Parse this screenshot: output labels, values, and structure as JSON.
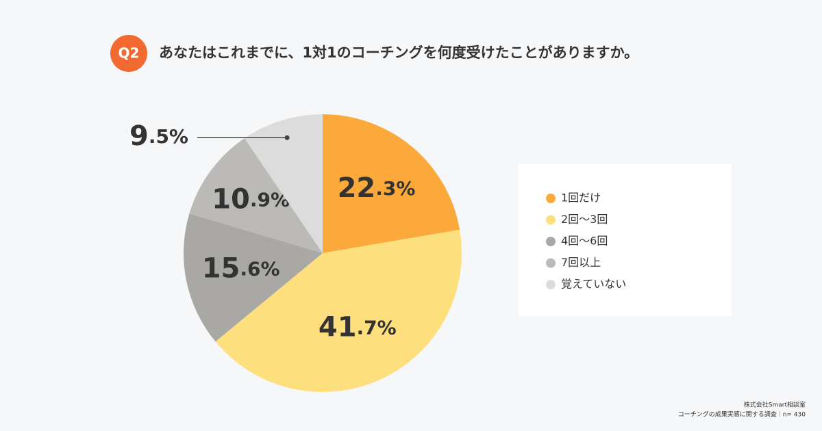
{
  "chart_data": {
    "type": "pie",
    "badge": "Q2",
    "title": "あなたはこれまでに、1対1のコーチングを何度受けたことがありますか。",
    "categories": [
      "1回だけ",
      "2回〜3回",
      "4回〜6回",
      "7回以上",
      "覚えていない"
    ],
    "values": [
      22.3,
      41.7,
      15.6,
      10.9,
      9.5
    ],
    "value_labels": [
      "22.3%",
      "41.7%",
      "15.6%",
      "10.9%",
      "9.5%"
    ],
    "colors": [
      "#fba93a",
      "#fedf7e",
      "#a9a8a4",
      "#bbbab7",
      "#dcdcdc"
    ],
    "footnote": [
      "株式会社Smart相談室",
      "コーチングの成果実感に関する調査｜n= 430"
    ]
  }
}
